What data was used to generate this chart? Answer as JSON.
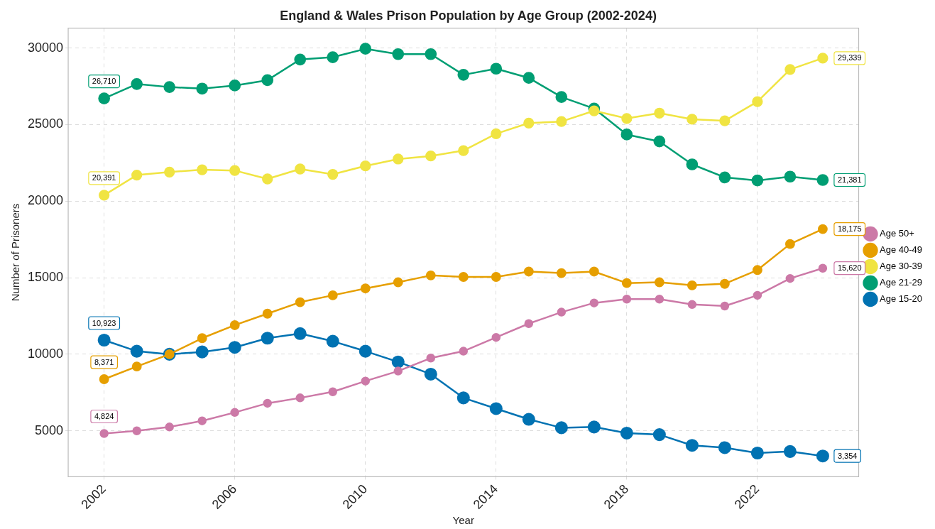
{
  "chart_data": {
    "type": "line",
    "title": "England & Wales Prison Population by Age Group (2002-2024)",
    "xlabel": "Year",
    "ylabel": "Number of Prisoners",
    "x": [
      2002,
      2003,
      2004,
      2005,
      2006,
      2007,
      2008,
      2009,
      2010,
      2011,
      2012,
      2013,
      2014,
      2015,
      2016,
      2017,
      2018,
      2019,
      2020,
      2021,
      2022,
      2023,
      2024
    ],
    "series": [
      {
        "name": "Age 50+",
        "color": "#cc79a7",
        "values": [
          4824,
          5000,
          5250,
          5650,
          6200,
          6800,
          7150,
          7550,
          8250,
          8900,
          9750,
          10200,
          11100,
          12000,
          12750,
          13350,
          13600,
          13600,
          13250,
          13150,
          13850,
          14950,
          15620
        ],
        "value_labels": [
          "4,824",
          null,
          null,
          null,
          null,
          null,
          null,
          null,
          null,
          null,
          null,
          null,
          null,
          null,
          null,
          null,
          null,
          null,
          null,
          null,
          null,
          null,
          "15,620"
        ]
      },
      {
        "name": "Age 40-49",
        "color": "#e69f00",
        "values": [
          8371,
          9200,
          10000,
          11050,
          11900,
          12650,
          13400,
          13850,
          14300,
          14700,
          15150,
          15050,
          15050,
          15400,
          15300,
          15400,
          14650,
          14700,
          14500,
          14600,
          15500,
          17200,
          18175
        ],
        "value_labels": [
          "8,371",
          null,
          null,
          null,
          null,
          null,
          null,
          null,
          null,
          null,
          null,
          null,
          null,
          null,
          null,
          null,
          null,
          null,
          null,
          null,
          null,
          null,
          "18,175"
        ]
      },
      {
        "name": "Age 30-39",
        "color": "#f0e442",
        "values": [
          20391,
          21700,
          21900,
          22050,
          22000,
          21450,
          22100,
          21750,
          22300,
          22750,
          22950,
          23300,
          24400,
          25100,
          25200,
          25900,
          25400,
          25750,
          25350,
          25250,
          26500,
          28600,
          29339
        ],
        "value_labels": [
          "20,391",
          null,
          null,
          null,
          null,
          null,
          null,
          null,
          null,
          null,
          null,
          null,
          null,
          null,
          null,
          null,
          null,
          null,
          null,
          null,
          null,
          null,
          "29,339"
        ]
      },
      {
        "name": "Age 21-29",
        "color": "#009e73",
        "values": [
          26710,
          27650,
          27450,
          27350,
          27550,
          27900,
          29250,
          29400,
          29950,
          29600,
          29600,
          28250,
          28650,
          28050,
          26800,
          26050,
          24350,
          23900,
          22400,
          21550,
          21350,
          21600,
          21381
        ],
        "value_labels": [
          "26,710",
          null,
          null,
          null,
          null,
          null,
          null,
          null,
          null,
          null,
          null,
          null,
          null,
          null,
          null,
          null,
          null,
          null,
          null,
          null,
          null,
          null,
          "21,381"
        ]
      },
      {
        "name": "Age 15-20",
        "color": "#0072b2",
        "values": [
          10923,
          10200,
          10000,
          10150,
          10450,
          11050,
          11350,
          10850,
          10200,
          9500,
          8700,
          7150,
          6450,
          5750,
          5200,
          5250,
          4850,
          4750,
          4050,
          3900,
          3550,
          3650,
          3354
        ],
        "value_labels": [
          "10,923",
          null,
          null,
          null,
          null,
          null,
          null,
          null,
          null,
          null,
          null,
          null,
          null,
          null,
          null,
          null,
          null,
          null,
          null,
          null,
          null,
          null,
          "3,354"
        ]
      }
    ],
    "xlim": [
      2000.9,
      2025.1
    ],
    "xticks": [
      2002,
      2006,
      2010,
      2014,
      2018,
      2022
    ],
    "ylim": [
      2000,
      31300
    ],
    "yticks": [
      5000,
      10000,
      15000,
      20000,
      25000,
      30000
    ],
    "grid": true,
    "legend": "right",
    "marker": "circle",
    "line_style": "solid"
  }
}
